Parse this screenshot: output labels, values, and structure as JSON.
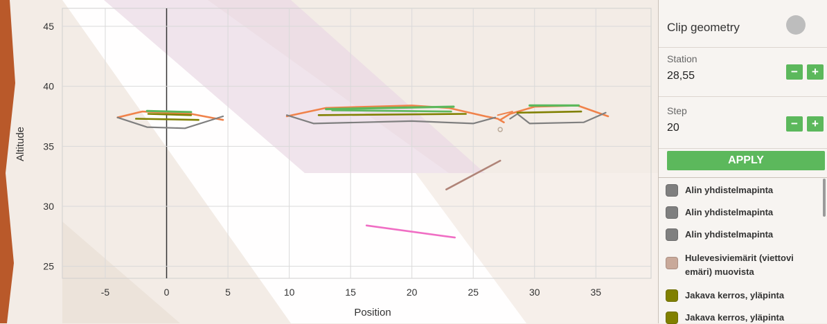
{
  "chart_data": {
    "type": "line",
    "title": "",
    "xlabel": "Position",
    "ylabel": "Altitude",
    "xlim": [
      -8.5,
      39.5
    ],
    "ylim": [
      24,
      46.5
    ],
    "x_ticks": [
      -5,
      0,
      5,
      10,
      15,
      20,
      25,
      30,
      35
    ],
    "y_ticks": [
      25,
      30,
      35,
      40,
      45
    ],
    "grid": true,
    "legend": "none",
    "series": [
      {
        "color": "#f0824a",
        "width": 2.6,
        "points": [
          [
            -4,
            37.4
          ],
          [
            -2,
            37.9
          ],
          [
            2,
            37.7
          ],
          [
            4.6,
            37.2
          ]
        ]
      },
      {
        "color": "#7f7f7f",
        "width": 2.2,
        "points": [
          [
            -4,
            37.4
          ],
          [
            -1.6,
            36.6
          ],
          [
            1.5,
            36.5
          ],
          [
            4.6,
            37.5
          ]
        ]
      },
      {
        "color": "#5cb85c",
        "width": 3,
        "points": [
          [
            -1.6,
            37.95
          ],
          [
            2,
            37.85
          ]
        ]
      },
      {
        "color": "#808000",
        "width": 2.6,
        "points": [
          [
            -1.5,
            37.7
          ],
          [
            2,
            37.6
          ]
        ]
      },
      {
        "color": "#808000",
        "width": 2.6,
        "points": [
          [
            -2.5,
            37.3
          ],
          [
            2.6,
            37.2
          ]
        ]
      },
      {
        "color": "#f0824a",
        "width": 2.6,
        "points": [
          [
            9.8,
            37.5
          ],
          [
            13,
            38.2
          ],
          [
            20,
            38.4
          ],
          [
            23,
            38.2
          ],
          [
            26,
            37.5
          ],
          [
            27,
            37.3
          ],
          [
            27.5,
            37.0
          ]
        ]
      },
      {
        "color": "#7f7f7f",
        "width": 2.2,
        "points": [
          [
            9.8,
            37.6
          ],
          [
            12,
            36.9
          ],
          [
            20,
            37.1
          ],
          [
            25,
            36.9
          ],
          [
            26.8,
            37.4
          ]
        ]
      },
      {
        "color": "#5cb85c",
        "width": 3.2,
        "points": [
          [
            13,
            38.1
          ],
          [
            23.4,
            38.3
          ]
        ]
      },
      {
        "color": "#5cb85c",
        "width": 2.6,
        "points": [
          [
            13.5,
            38.0
          ],
          [
            23.2,
            37.9
          ]
        ]
      },
      {
        "color": "#808000",
        "width": 2.6,
        "points": [
          [
            12.4,
            37.6
          ],
          [
            24.4,
            37.7
          ]
        ]
      },
      {
        "color": "#f0824a",
        "width": 2.6,
        "points": [
          [
            27.2,
            37.2
          ],
          [
            28,
            37.7
          ],
          [
            30,
            38.3
          ],
          [
            33.5,
            38.4
          ],
          [
            36,
            37.5
          ]
        ]
      },
      {
        "color": "#f0824a",
        "width": 2,
        "points": [
          [
            27.0,
            37.6
          ],
          [
            28.2,
            37.9
          ]
        ]
      },
      {
        "color": "#7f7f7f",
        "width": 2.2,
        "points": [
          [
            28,
            37.3
          ],
          [
            28.6,
            37.7
          ],
          [
            29.6,
            36.9
          ],
          [
            34,
            37.0
          ],
          [
            35.8,
            37.8
          ]
        ]
      },
      {
        "color": "#5cb85c",
        "width": 3.2,
        "points": [
          [
            29.6,
            38.4
          ],
          [
            33.6,
            38.4
          ]
        ]
      },
      {
        "color": "#808000",
        "width": 2.6,
        "points": [
          [
            28.6,
            37.8
          ],
          [
            33.8,
            37.9
          ]
        ]
      },
      {
        "color": "#b08478",
        "width": 2.6,
        "points": [
          [
            22.8,
            31.4
          ],
          [
            27.2,
            33.8
          ]
        ]
      },
      {
        "color": "#f06ec4",
        "width": 2.6,
        "points": [
          [
            16.3,
            28.4
          ],
          [
            23.5,
            27.4
          ]
        ]
      }
    ],
    "markers": [
      {
        "x": 27.2,
        "y": 36.4,
        "color": "#bbaa99"
      }
    ]
  },
  "panel": {
    "clip_label": "Clip geometry",
    "station_label": "Station",
    "station_value": "28,55",
    "step_label": "Step",
    "step_value": "20",
    "minus": "−",
    "plus": "+",
    "apply_label": "APPLY"
  },
  "legend": [
    {
      "label": "Alin yhdistelmapinta",
      "color": "#7f7f7f"
    },
    {
      "label": "Alin yhdistelmapinta",
      "color": "#7f7f7f"
    },
    {
      "label": "Alin yhdistelmapinta",
      "color": "#7f7f7f"
    },
    {
      "label": "Hulevesiviemärit (viettovi emäri) muovista",
      "color": "#c9a99a"
    },
    {
      "label": "Jakava kerros, yläpinta",
      "color": "#808000"
    },
    {
      "label": "Jakava kerros, yläpinta",
      "color": "#808000"
    }
  ]
}
